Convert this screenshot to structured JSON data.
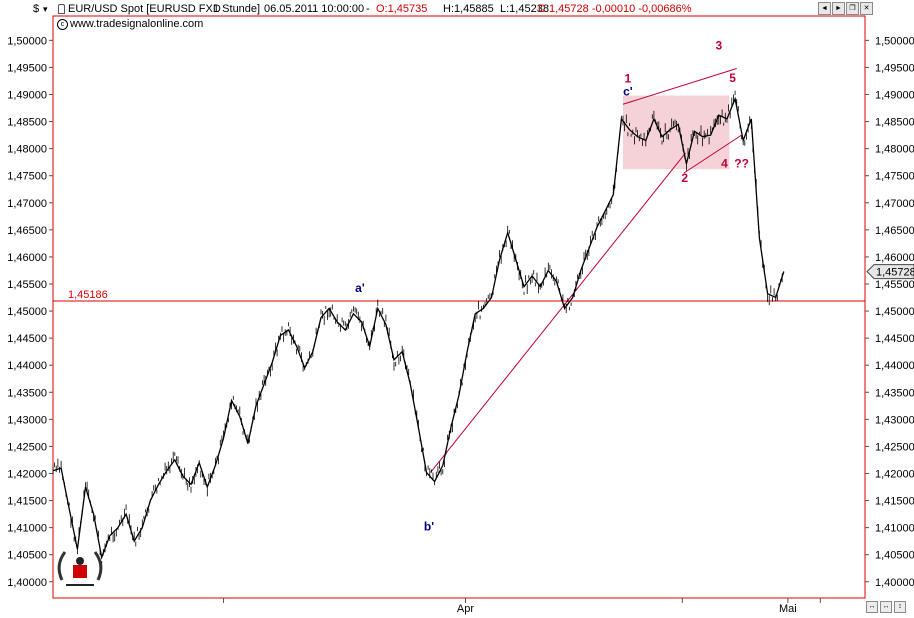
{
  "window": {
    "currency_symbol": "$",
    "instrument": "EUR/USD Spot [EURUSD FXD",
    "interval": "1 Stunde]",
    "datetime": "06.05.2011 10:00:00",
    "sep": "-",
    "ohlc_open": "O:1,45735",
    "ohlc_high": "H:1,45885",
    "ohlc_low": "L:1,45238",
    "ohlc_close": "C:1,45728 -0,00010 -0,00686%",
    "source": "www.tradesignalonline.com",
    "controls": [
      "◄",
      "►",
      "❐",
      "✕"
    ],
    "bottom_controls": [
      "↔",
      "↔",
      "↕"
    ]
  },
  "colors": {
    "axis": "#e00000",
    "price": "#000000",
    "box": "#f5d2d8",
    "wave": "#c0003a",
    "abc": "#000080"
  },
  "chart_data": {
    "type": "line",
    "instrument": "EUR/USD Spot",
    "timeframe": "1 Stunde",
    "ylim": [
      1.397,
      1.5045
    ],
    "y_ticks": [
      1.4,
      1.405,
      1.41,
      1.415,
      1.42,
      1.425,
      1.43,
      1.435,
      1.44,
      1.445,
      1.45,
      1.455,
      1.46,
      1.465,
      1.47,
      1.475,
      1.48,
      1.485,
      1.49,
      1.495,
      1.5
    ],
    "y_tick_labels": [
      "1,40000",
      "1,40500",
      "1,41000",
      "1,41500",
      "1,42000",
      "1,42500",
      "1,43000",
      "1,43500",
      "1,44000",
      "1,44500",
      "1,45000",
      "1,45500",
      "1,46000",
      "1,46500",
      "1,47000",
      "1,47500",
      "1,48000",
      "1,48500",
      "1,49000",
      "1,49500",
      "1,50000"
    ],
    "x_labels": [
      "Apr",
      "Mai"
    ],
    "bar_range": [
      0,
      100
    ],
    "x_label_positions": [
      50.8,
      90.5
    ],
    "x_minor_ticks": [
      21,
      77.5
    ],
    "x_end": 94.5,
    "series": [
      {
        "x": [
          0,
          1,
          2,
          3,
          4,
          5,
          6,
          7,
          8,
          9,
          10,
          11,
          12,
          13,
          14,
          15,
          16,
          17,
          18,
          19,
          20,
          21,
          22,
          23,
          24,
          25,
          26,
          27,
          28,
          29,
          30,
          31,
          32,
          33,
          34,
          35,
          36,
          37,
          38,
          39,
          40,
          41,
          42,
          43,
          44,
          45,
          46,
          47,
          48,
          49,
          50,
          51,
          52,
          53,
          54,
          55,
          56,
          57,
          58,
          59,
          60,
          61,
          62,
          63,
          64,
          65,
          66,
          67,
          68,
          69,
          70,
          71,
          72,
          73,
          74,
          75,
          76,
          77,
          78,
          79,
          80,
          81,
          82,
          83,
          84,
          85,
          86,
          87,
          88,
          89,
          90
        ],
        "y": [
          1.4205,
          1.421,
          1.4135,
          1.406,
          1.4175,
          1.4125,
          1.4045,
          1.4085,
          1.41,
          1.4125,
          1.4075,
          1.41,
          1.415,
          1.418,
          1.4205,
          1.4225,
          1.4195,
          1.418,
          1.422,
          1.4175,
          1.4215,
          1.4265,
          1.4335,
          1.4305,
          1.4255,
          1.4325,
          1.4365,
          1.4405,
          1.4455,
          1.4465,
          1.4435,
          1.4395,
          1.4425,
          1.4488,
          1.4505,
          1.448,
          1.4465,
          1.4495,
          1.448,
          1.4435,
          1.4505,
          1.4475,
          1.441,
          1.4425,
          1.4365,
          1.4285,
          1.4202,
          1.4185,
          1.4215,
          1.4285,
          1.4345,
          1.4425,
          1.4495,
          1.4505,
          1.4525,
          1.4595,
          1.4645,
          1.4595,
          1.4545,
          1.4565,
          1.4545,
          1.4575,
          1.4555,
          1.4505,
          1.4525,
          1.4575,
          1.4615,
          1.4655,
          1.4685,
          1.4715,
          1.4855,
          1.4835,
          1.4822,
          1.4815,
          1.4855,
          1.4822,
          1.4835,
          1.4845,
          1.4772,
          1.4832,
          1.4822,
          1.4825,
          1.4862,
          1.4855,
          1.4892,
          1.4815,
          1.4855,
          1.4635,
          1.4532,
          1.4525,
          1.4573
        ]
      }
    ],
    "reference_line": {
      "value": 1.45186,
      "label": "1,45186"
    },
    "last_price": {
      "value": 1.45728,
      "label": "1,45728"
    },
    "annotations": {
      "labels": [
        {
          "text": "a'",
          "x": 37.8,
          "y": 1.4535,
          "color": "abc"
        },
        {
          "text": "b'",
          "x": 46.3,
          "y": 1.4095,
          "color": "abc"
        },
        {
          "text": "c'",
          "x": 70.8,
          "y": 1.4898,
          "color": "abc"
        },
        {
          "text": "1",
          "x": 70.8,
          "y": 1.4922,
          "color": "wave"
        },
        {
          "text": "2",
          "x": 77.8,
          "y": 1.4738,
          "color": "wave"
        },
        {
          "text": "3",
          "x": 82.0,
          "y": 1.4983,
          "color": "wave"
        },
        {
          "text": "4",
          "x": 82.7,
          "y": 1.4765,
          "color": "wave"
        },
        {
          "text": "5",
          "x": 83.7,
          "y": 1.4923,
          "color": "wave"
        },
        {
          "text": "??",
          "x": 84.8,
          "y": 1.4765,
          "color": "wave"
        }
      ],
      "trendlines": [
        {
          "from": [
            46.5,
            1.4202
          ],
          "to": [
            77.9,
            1.4792
          ]
        },
        {
          "from": [
            70.2,
            1.4882
          ],
          "to": [
            84.2,
            1.4948
          ]
        },
        {
          "from": [
            77.7,
            1.4755
          ],
          "to": [
            84.8,
            1.4825
          ]
        }
      ],
      "box": {
        "x_range": [
          70.2,
          83.3
        ],
        "y_range": [
          1.4762,
          1.4898
        ]
      }
    }
  }
}
